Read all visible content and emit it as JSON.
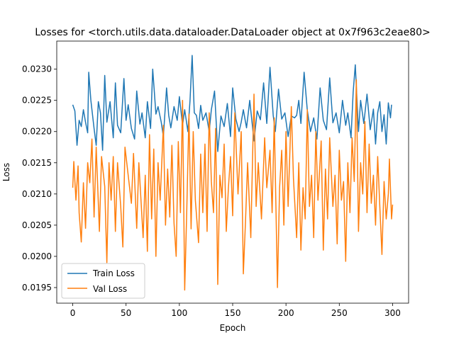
{
  "chart_data": {
    "type": "line",
    "title": "Losses for <torch.utils.data.dataloader.DataLoader object at 0x7f963c2eae80>",
    "xlabel": "Epoch",
    "ylabel": "Loss",
    "xlim": [
      -15,
      315
    ],
    "ylim": [
      0.01925,
      0.02345
    ],
    "xticks": [
      0,
      50,
      100,
      150,
      200,
      250,
      300
    ],
    "xtick_labels": [
      "0",
      "50",
      "100",
      "150",
      "200",
      "250",
      "300"
    ],
    "yticks": [
      0.0195,
      0.02,
      0.0205,
      0.021,
      0.0215,
      0.022,
      0.0225,
      0.023
    ],
    "ytick_labels": [
      "0.0195",
      "0.0200",
      "0.0205",
      "0.0210",
      "0.0215",
      "0.0220",
      "0.0225",
      "0.0230"
    ],
    "grid": false,
    "legend_position": "lower-left",
    "series": [
      {
        "name": "Train Loss",
        "color": "#1f77b4",
        "anchors": [
          [
            0,
            0.02243
          ],
          [
            2,
            0.02233
          ],
          [
            4,
            0.02178
          ],
          [
            6,
            0.02218
          ],
          [
            8,
            0.02208
          ],
          [
            10,
            0.02235
          ],
          [
            12,
            0.02215
          ],
          [
            14,
            0.02198
          ],
          [
            15,
            0.02295
          ],
          [
            17,
            0.0225
          ],
          [
            20,
            0.02205
          ],
          [
            22,
            0.02178
          ],
          [
            24,
            0.02248
          ],
          [
            26,
            0.0223
          ],
          [
            28,
            0.0217
          ],
          [
            30,
            0.0229
          ],
          [
            32,
            0.02215
          ],
          [
            35,
            0.02248
          ],
          [
            38,
            0.0219
          ],
          [
            40,
            0.02278
          ],
          [
            42,
            0.0221
          ],
          [
            45,
            0.02198
          ],
          [
            48,
            0.02285
          ],
          [
            50,
            0.02218
          ],
          [
            52,
            0.02243
          ],
          [
            55,
            0.02205
          ],
          [
            58,
            0.02188
          ],
          [
            60,
            0.02265
          ],
          [
            63,
            0.02212
          ],
          [
            65,
            0.0223
          ],
          [
            68,
            0.0219
          ],
          [
            70,
            0.02248
          ],
          [
            73,
            0.02205
          ],
          [
            75,
            0.023
          ],
          [
            78,
            0.02228
          ],
          [
            80,
            0.0224
          ],
          [
            83,
            0.02215
          ],
          [
            85,
            0.02192
          ],
          [
            88,
            0.0227
          ],
          [
            90,
            0.02226
          ],
          [
            92,
            0.02206
          ],
          [
            95,
            0.0224
          ],
          [
            98,
            0.02218
          ],
          [
            100,
            0.02256
          ],
          [
            103,
            0.0221
          ],
          [
            105,
            0.02235
          ],
          [
            108,
            0.022
          ],
          [
            110,
            0.0225
          ],
          [
            112,
            0.02322
          ],
          [
            114,
            0.0223
          ],
          [
            116,
            0.02226
          ],
          [
            118,
            0.02205
          ],
          [
            120,
            0.02242
          ],
          [
            122,
            0.02218
          ],
          [
            125,
            0.0223
          ],
          [
            128,
            0.022
          ],
          [
            130,
            0.02235
          ],
          [
            133,
            0.02265
          ],
          [
            136,
            0.02168
          ],
          [
            139,
            0.02225
          ],
          [
            142,
            0.02208
          ],
          [
            145,
            0.02245
          ],
          [
            148,
            0.02192
          ],
          [
            150,
            0.0227
          ],
          [
            153,
            0.0222
          ],
          [
            156,
            0.022
          ],
          [
            158,
            0.02215
          ],
          [
            160,
            0.02235
          ],
          [
            163,
            0.02206
          ],
          [
            166,
            0.0225
          ],
          [
            170,
            0.02185
          ],
          [
            173,
            0.02233
          ],
          [
            176,
            0.02219
          ],
          [
            179,
            0.02278
          ],
          [
            182,
            0.02213
          ],
          [
            185,
            0.02303
          ],
          [
            188,
            0.02226
          ],
          [
            190,
            0.022
          ],
          [
            193,
            0.02268
          ],
          [
            196,
            0.0222
          ],
          [
            199,
            0.0223
          ],
          [
            202,
            0.02192
          ],
          [
            205,
            0.02225
          ],
          [
            208,
            0.02222
          ],
          [
            210,
            0.02226
          ],
          [
            212,
            0.0225
          ],
          [
            214,
            0.02213
          ],
          [
            217,
            0.02295
          ],
          [
            220,
            0.02234
          ],
          [
            223,
            0.022
          ],
          [
            226,
            0.02222
          ],
          [
            229,
            0.02188
          ],
          [
            232,
            0.0227
          ],
          [
            235,
            0.02218
          ],
          [
            238,
            0.02203
          ],
          [
            241,
            0.02286
          ],
          [
            244,
            0.02214
          ],
          [
            247,
            0.0223
          ],
          [
            250,
            0.02198
          ],
          [
            253,
            0.0225
          ],
          [
            256,
            0.0221
          ],
          [
            258,
            0.0223
          ],
          [
            261,
            0.0219
          ],
          [
            263,
            0.02263
          ],
          [
            265,
            0.02307
          ],
          [
            268,
            0.022
          ],
          [
            270,
            0.0225
          ],
          [
            273,
            0.02213
          ],
          [
            276,
            0.0226
          ],
          [
            279,
            0.02203
          ],
          [
            282,
            0.02236
          ],
          [
            284,
            0.0218
          ],
          [
            286,
            0.0223
          ],
          [
            288,
            0.02248
          ],
          [
            290,
            0.022
          ],
          [
            292,
            0.02227
          ],
          [
            294,
            0.0218
          ],
          [
            296,
            0.02246
          ],
          [
            298,
            0.02222
          ],
          [
            299,
            0.02243
          ]
        ]
      },
      {
        "name": "Val Loss",
        "color": "#ff7f0e",
        "anchors": [
          [
            0,
            0.0211
          ],
          [
            1,
            0.02152
          ],
          [
            3,
            0.0209
          ],
          [
            5,
            0.02145
          ],
          [
            6,
            0.0207
          ],
          [
            8,
            0.02023
          ],
          [
            10,
            0.02118
          ],
          [
            12,
            0.02045
          ],
          [
            14,
            0.0215
          ],
          [
            16,
            0.02118
          ],
          [
            18,
            0.02188
          ],
          [
            20,
            0.02063
          ],
          [
            22,
            0.02175
          ],
          [
            25,
            0.0204
          ],
          [
            27,
            0.0216
          ],
          [
            30,
            0.02112
          ],
          [
            32,
            0.0199
          ],
          [
            34,
            0.0215
          ],
          [
            36,
            0.0209
          ],
          [
            38,
            0.0216
          ],
          [
            40,
            0.0204
          ],
          [
            42,
            0.0215
          ],
          [
            45,
            0.0208
          ],
          [
            47,
            0.02015
          ],
          [
            49,
            0.02175
          ],
          [
            52,
            0.0213
          ],
          [
            55,
            0.02085
          ],
          [
            57,
            0.02165
          ],
          [
            60,
            0.02045
          ],
          [
            62,
            0.0215
          ],
          [
            64,
            0.0209
          ],
          [
            66,
            0.0203
          ],
          [
            68,
            0.0213
          ],
          [
            70,
            0.02008
          ],
          [
            72,
            0.02195
          ],
          [
            74,
            0.0206
          ],
          [
            76,
            0.02172
          ],
          [
            78,
            0.02
          ],
          [
            80,
            0.0215
          ],
          [
            82,
            0.0209
          ],
          [
            85,
            0.0221
          ],
          [
            87,
            0.0205
          ],
          [
            89,
            0.0214
          ],
          [
            91,
            0.02063
          ],
          [
            93,
            0.02178
          ],
          [
            95,
            0.02053
          ],
          [
            97,
            0.02
          ],
          [
            99,
            0.02184
          ],
          [
            101,
            0.0207
          ],
          [
            103,
            0.0225
          ],
          [
            105,
            0.01946
          ],
          [
            107,
            0.02078
          ],
          [
            109,
            0.02228
          ],
          [
            111,
            0.02044
          ],
          [
            113,
            0.022
          ],
          [
            115,
            0.0209
          ],
          [
            118,
            0.02022
          ],
          [
            120,
            0.02164
          ],
          [
            122,
            0.0207
          ],
          [
            124,
            0.0218
          ],
          [
            126,
            0.0204
          ],
          [
            128,
            0.0223
          ],
          [
            130,
            0.0212
          ],
          [
            132,
            0.0207
          ],
          [
            134,
            0.02205
          ],
          [
            136,
            0.01955
          ],
          [
            138,
            0.0213
          ],
          [
            140,
            0.02094
          ],
          [
            142,
            0.0218
          ],
          [
            144,
            0.0204
          ],
          [
            146,
            0.0211
          ],
          [
            148,
            0.0216
          ],
          [
            150,
            0.02065
          ],
          [
            152,
            0.0223
          ],
          [
            155,
            0.021
          ],
          [
            158,
            0.022
          ],
          [
            160,
            0.01972
          ],
          [
            162,
            0.02055
          ],
          [
            164,
            0.0215
          ],
          [
            167,
            0.0203
          ],
          [
            170,
            0.0226
          ],
          [
            172,
            0.0208
          ],
          [
            174,
            0.0215
          ],
          [
            177,
            0.0206
          ],
          [
            180,
            0.0219
          ],
          [
            182,
            0.0211
          ],
          [
            185,
            0.0217
          ],
          [
            187,
            0.0207
          ],
          [
            189,
            0.02222
          ],
          [
            192,
            0.0195
          ],
          [
            194,
            0.0211
          ],
          [
            196,
            0.0217
          ],
          [
            198,
            0.0205
          ],
          [
            200,
            0.022
          ],
          [
            202,
            0.0208
          ],
          [
            205,
            0.0224
          ],
          [
            207,
            0.02125
          ],
          [
            210,
            0.0203
          ],
          [
            212,
            0.0215
          ],
          [
            214,
            0.0201
          ],
          [
            216,
            0.0211
          ],
          [
            218,
            0.0206
          ],
          [
            220,
            0.02235
          ],
          [
            222,
            0.0208
          ],
          [
            224,
            0.0213
          ],
          [
            226,
            0.0203
          ],
          [
            228,
            0.022
          ],
          [
            230,
            0.0209
          ],
          [
            233,
            0.02185
          ],
          [
            235,
            0.0201
          ],
          [
            237,
            0.0214
          ],
          [
            239,
            0.0206
          ],
          [
            241,
            0.0219
          ],
          [
            244,
            0.0208
          ],
          [
            246,
            0.0213
          ],
          [
            248,
            0.0202
          ],
          [
            250,
            0.0217
          ],
          [
            252,
            0.0209
          ],
          [
            254,
            0.0212
          ],
          [
            256,
            0.01992
          ],
          [
            258,
            0.0215
          ],
          [
            260,
            0.0207
          ],
          [
            262,
            0.0219
          ],
          [
            264,
            0.0212
          ],
          [
            266,
            0.02283
          ],
          [
            268,
            0.0204
          ],
          [
            270,
            0.0215
          ],
          [
            272,
            0.021
          ],
          [
            274,
            0.02216
          ],
          [
            276,
            0.0207
          ],
          [
            278,
            0.0218
          ],
          [
            280,
            0.02085
          ],
          [
            282,
            0.0213
          ],
          [
            284,
            0.0205
          ],
          [
            286,
            0.0216
          ],
          [
            288,
            0.0208
          ],
          [
            290,
            0.02003
          ],
          [
            292,
            0.0212
          ],
          [
            294,
            0.0206
          ],
          [
            296,
            0.021
          ],
          [
            297,
            0.02156
          ],
          [
            299,
            0.0206
          ],
          [
            300,
            0.02083
          ]
        ]
      }
    ]
  }
}
